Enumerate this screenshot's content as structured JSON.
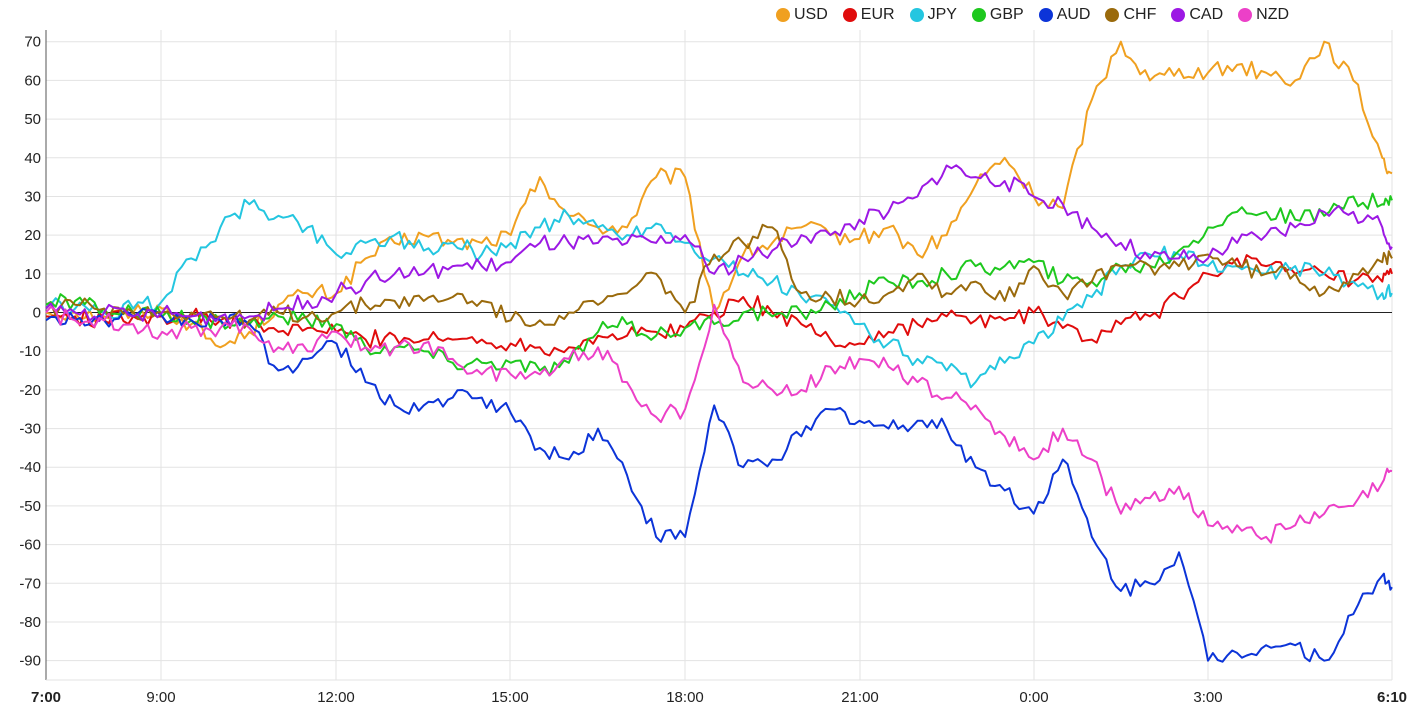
{
  "chart_data": {
    "type": "line",
    "title": "",
    "xlabel": "",
    "ylabel": "",
    "x_tick_labels": [
      "7:00",
      "9:00",
      "12:00",
      "15:00",
      "18:00",
      "21:00",
      "0:00",
      "3:00",
      "6:10"
    ],
    "x_tick_bold": [
      "7:00",
      "6:10"
    ],
    "y_ticks": [
      70,
      60,
      50,
      40,
      30,
      20,
      10,
      0,
      -10,
      -20,
      -30,
      -40,
      -50,
      -60,
      -70,
      -80,
      -90
    ],
    "ylim": [
      -95,
      72
    ],
    "grid": true,
    "legend_position": "top-right",
    "x_points": [
      "7:00",
      "7:30",
      "8:00",
      "8:30",
      "9:00",
      "9:30",
      "10:00",
      "10:30",
      "11:00",
      "11:30",
      "12:00",
      "12:30",
      "13:00",
      "13:30",
      "14:00",
      "14:30",
      "15:00",
      "15:30",
      "16:00",
      "16:30",
      "17:00",
      "17:30",
      "18:00",
      "18:30",
      "19:00",
      "19:30",
      "20:00",
      "20:30",
      "21:00",
      "21:30",
      "22:00",
      "22:30",
      "23:00",
      "23:30",
      "0:00",
      "0:30",
      "1:00",
      "1:30",
      "2:00",
      "2:30",
      "3:00",
      "3:30",
      "4:00",
      "4:30",
      "5:00",
      "5:30",
      "6:00",
      "6:10"
    ],
    "series": [
      {
        "name": "USD",
        "color": "#f0a020",
        "values": [
          0,
          0,
          -1,
          0,
          1,
          -3,
          -9,
          -5,
          2,
          5,
          5,
          14,
          18,
          20,
          18,
          18,
          20,
          35,
          25,
          22,
          22,
          35,
          35,
          0,
          15,
          18,
          22,
          20,
          19,
          22,
          15,
          20,
          33,
          40,
          30,
          27,
          55,
          70,
          60,
          63,
          62,
          64,
          62,
          60,
          70,
          60,
          40,
          36
        ]
      },
      {
        "name": "EUR",
        "color": "#e00c0c",
        "values": [
          -1,
          -1,
          -2,
          -1,
          -1,
          -1,
          -2,
          -3,
          -5,
          -4,
          -5,
          -7,
          -6,
          -7,
          -7,
          -7,
          -8,
          -9,
          -9,
          -6,
          -6,
          -5,
          -4,
          0,
          4,
          0,
          -3,
          -7,
          -8,
          -5,
          -3,
          -1,
          -2,
          -2,
          0,
          -4,
          -7,
          -3,
          -1,
          4,
          10,
          14,
          12,
          10,
          10,
          8,
          8,
          10
        ]
      },
      {
        "name": "JPY",
        "color": "#24c6e0",
        "values": [
          2,
          1,
          0,
          1,
          3,
          14,
          22,
          28,
          25,
          22,
          15,
          18,
          20,
          16,
          18,
          15,
          18,
          22,
          25,
          22,
          20,
          23,
          18,
          14,
          10,
          8,
          4,
          2,
          -3,
          -8,
          -12,
          -15,
          -18,
          -13,
          -8,
          -2,
          4,
          12,
          15,
          15,
          12,
          12,
          10,
          12,
          10,
          8,
          5,
          5
        ]
      },
      {
        "name": "GBP",
        "color": "#1ec81e",
        "values": [
          2,
          3,
          1,
          0,
          -1,
          -2,
          -2,
          -3,
          -1,
          -2,
          -3,
          -9,
          -9,
          -10,
          -13,
          -13,
          -13,
          -15,
          -13,
          -5,
          -3,
          -6,
          -4,
          -3,
          0,
          -1,
          0,
          2,
          5,
          8,
          8,
          10,
          12,
          12,
          13,
          8,
          8,
          12,
          12,
          16,
          22,
          26,
          26,
          24,
          25,
          30,
          28,
          29
        ]
      },
      {
        "name": "AUD",
        "color": "#0c34d8",
        "values": [
          -2,
          -2,
          -2,
          -1,
          -1,
          -2,
          -2,
          -3,
          -15,
          -12,
          -8,
          -18,
          -24,
          -24,
          -22,
          -22,
          -26,
          -35,
          -38,
          -30,
          -42,
          -58,
          -58,
          -24,
          -40,
          -38,
          -32,
          -25,
          -28,
          -30,
          -28,
          -30,
          -40,
          -46,
          -52,
          -38,
          -58,
          -72,
          -70,
          -62,
          -90,
          -88,
          -86,
          -86,
          -90,
          -78,
          -68,
          -71
        ]
      },
      {
        "name": "CHF",
        "color": "#9a6a0c",
        "values": [
          1,
          2,
          1,
          0,
          0,
          0,
          -1,
          -2,
          0,
          -1,
          0,
          2,
          3,
          3,
          4,
          3,
          -2,
          -2,
          0,
          2,
          5,
          10,
          0,
          15,
          18,
          22,
          5,
          4,
          3,
          5,
          10,
          5,
          8,
          3,
          12,
          5,
          8,
          12,
          12,
          12,
          15,
          12,
          10,
          10,
          5,
          10,
          13,
          14
        ]
      },
      {
        "name": "CAD",
        "color": "#9c18e4",
        "values": [
          1,
          0,
          0,
          -1,
          0,
          -1,
          -1,
          -1,
          1,
          3,
          5,
          8,
          10,
          10,
          12,
          12,
          13,
          18,
          18,
          18,
          18,
          18,
          20,
          10,
          14,
          16,
          20,
          20,
          24,
          26,
          30,
          38,
          35,
          34,
          30,
          28,
          22,
          18,
          14,
          14,
          14,
          18,
          20,
          22,
          26,
          26,
          22,
          17
        ]
      },
      {
        "name": "NZD",
        "color": "#ec40c8",
        "values": [
          0,
          -2,
          -2,
          -3,
          -5,
          -4,
          -4,
          -4,
          -9,
          -10,
          -5,
          -9,
          -9,
          -8,
          -12,
          -16,
          -16,
          -16,
          -12,
          -9,
          -18,
          -27,
          -25,
          2,
          -18,
          -20,
          -20,
          -14,
          -12,
          -14,
          -18,
          -22,
          -24,
          -32,
          -38,
          -30,
          -38,
          -52,
          -48,
          -45,
          -55,
          -55,
          -58,
          -55,
          -52,
          -50,
          -44,
          -41
        ]
      }
    ]
  }
}
